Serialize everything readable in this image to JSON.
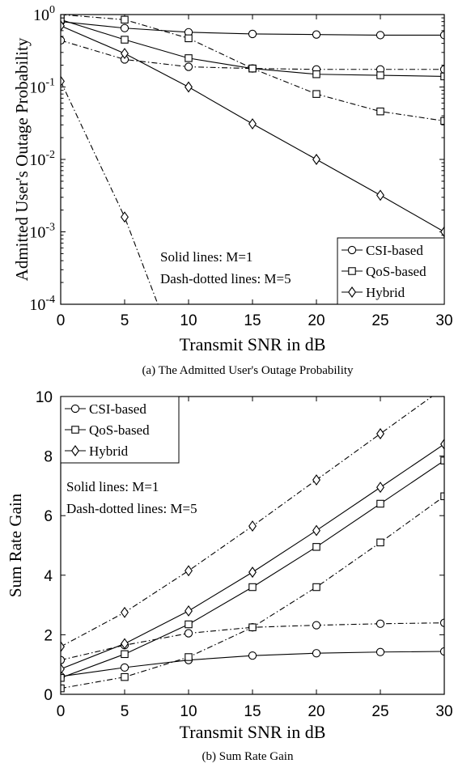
{
  "chart_data": [
    {
      "type": "line",
      "yscale": "log",
      "xlabel": "Transmit SNR in dB",
      "ylabel": "Admitted User's Outage Probability",
      "caption": "(a) The Admitted User's Outage Probability",
      "xlim": [
        0,
        30
      ],
      "ylim": [
        0.0001,
        1
      ],
      "xticks": [
        "0",
        "5",
        "10",
        "15",
        "20",
        "25",
        "30"
      ],
      "yticks": [
        {
          "base": "10",
          "exp": "0",
          "value": 1
        },
        {
          "base": "10",
          "exp": "-1",
          "value": 0.1
        },
        {
          "base": "10",
          "exp": "-2",
          "value": 0.01
        },
        {
          "base": "10",
          "exp": "-3",
          "value": 0.001
        },
        {
          "base": "10",
          "exp": "-4",
          "value": 0.0001
        }
      ],
      "legend": {
        "position": "bottom-right",
        "entries": [
          "CSI-based",
          "QoS-based",
          "Hybrid"
        ]
      },
      "annotations": [
        "Solid lines: M=1",
        "Dash-dotted lines: M=5"
      ],
      "x": [
        0,
        5,
        10,
        15,
        20,
        25,
        30
      ],
      "series": [
        {
          "name": "CSI-based",
          "marker": "circle",
          "style": "solid",
          "values": [
            0.8,
            0.65,
            0.57,
            0.54,
            0.53,
            0.52,
            0.52
          ]
        },
        {
          "name": "CSI-based",
          "marker": "circle",
          "style": "dashdot",
          "values": [
            0.44,
            0.24,
            0.19,
            0.18,
            0.175,
            0.175,
            0.175
          ]
        },
        {
          "name": "QoS-based",
          "marker": "square",
          "style": "solid",
          "values": [
            0.85,
            0.45,
            0.25,
            0.18,
            0.15,
            0.145,
            0.14
          ]
        },
        {
          "name": "QoS-based",
          "marker": "square",
          "style": "dashdot",
          "values": [
            1.0,
            0.85,
            0.47,
            0.18,
            0.08,
            0.046,
            0.034
          ]
        },
        {
          "name": "Hybrid",
          "marker": "diamond",
          "style": "solid",
          "values": [
            0.7,
            0.29,
            0.1,
            0.031,
            0.01,
            0.0032,
            0.001
          ]
        },
        {
          "name": "Hybrid",
          "marker": "diamond",
          "style": "dashdot",
          "x": [
            0,
            5,
            7.6
          ],
          "values": [
            0.12,
            0.0016,
            0.0001
          ]
        }
      ]
    },
    {
      "type": "line",
      "xlabel": "Transmit SNR in dB",
      "ylabel": "Sum Rate Gain",
      "caption": "(b) Sum Rate Gain",
      "xlim": [
        0,
        30
      ],
      "ylim": [
        0,
        10
      ],
      "xticks": [
        "0",
        "5",
        "10",
        "15",
        "20",
        "25",
        "30"
      ],
      "yticks": [
        "0",
        "2",
        "4",
        "6",
        "8",
        "10"
      ],
      "legend": {
        "position": "top-left",
        "entries": [
          "CSI-based",
          "QoS-based",
          "Hybrid"
        ]
      },
      "annotations": [
        "Solid lines: M=1",
        "Dash-dotted lines: M=5"
      ],
      "x": [
        0,
        5,
        10,
        15,
        20,
        25,
        30
      ],
      "series": [
        {
          "name": "CSI-based",
          "marker": "circle",
          "style": "solid",
          "values": [
            0.6,
            0.9,
            1.15,
            1.3,
            1.38,
            1.42,
            1.44
          ]
        },
        {
          "name": "CSI-based",
          "marker": "circle",
          "style": "dashdot",
          "values": [
            1.15,
            1.65,
            2.05,
            2.25,
            2.32,
            2.37,
            2.4
          ]
        },
        {
          "name": "QoS-based",
          "marker": "square",
          "style": "solid",
          "values": [
            0.55,
            1.35,
            2.35,
            3.6,
            4.95,
            6.4,
            7.85
          ]
        },
        {
          "name": "QoS-based",
          "marker": "square",
          "style": "dashdot",
          "values": [
            0.2,
            0.58,
            1.25,
            2.25,
            3.6,
            5.1,
            6.65
          ]
        },
        {
          "name": "Hybrid",
          "marker": "diamond",
          "style": "solid",
          "values": [
            0.85,
            1.7,
            2.8,
            4.1,
            5.5,
            6.95,
            8.4
          ]
        },
        {
          "name": "Hybrid",
          "marker": "diamond",
          "style": "dashdot",
          "values": [
            1.6,
            2.75,
            4.15,
            5.65,
            7.2,
            8.75,
            10.3
          ]
        }
      ]
    }
  ]
}
